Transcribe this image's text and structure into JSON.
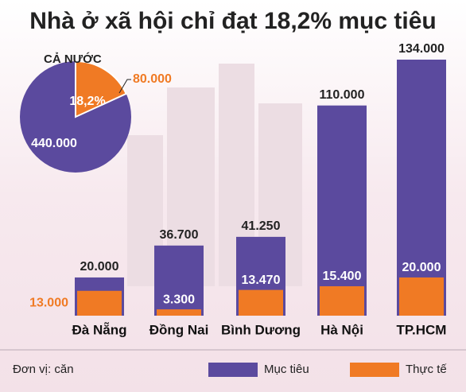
{
  "chart_data": {
    "type": "bar",
    "title": "Nhà ở xã hội chỉ đạt 18,2% mục tiêu",
    "categories": [
      "Đà Nẵng",
      "Đồng Nai",
      "Bình Dương",
      "Hà Nội",
      "TP.HCM"
    ],
    "series": [
      {
        "name": "Mục tiêu",
        "color": "#5b4a9e",
        "values": [
          20000,
          36700,
          41250,
          110000,
          134000
        ],
        "value_labels": [
          "20.000",
          "36.700",
          "41.250",
          "110.000",
          "134.000"
        ]
      },
      {
        "name": "Thực tế",
        "color": "#f07a24",
        "values": [
          13000,
          3300,
          13470,
          15400,
          20000
        ],
        "value_labels": [
          "13.000",
          "3.300",
          "13.470",
          "15.400",
          "20.000"
        ]
      }
    ],
    "unit_note": "Đơn vị: căn",
    "pie": {
      "title": "CẢ NƯỚC",
      "values": [
        440000,
        80000
      ],
      "value_labels": [
        "440.000",
        "80.000"
      ],
      "share": 18.2,
      "share_label": "18,2%"
    }
  }
}
